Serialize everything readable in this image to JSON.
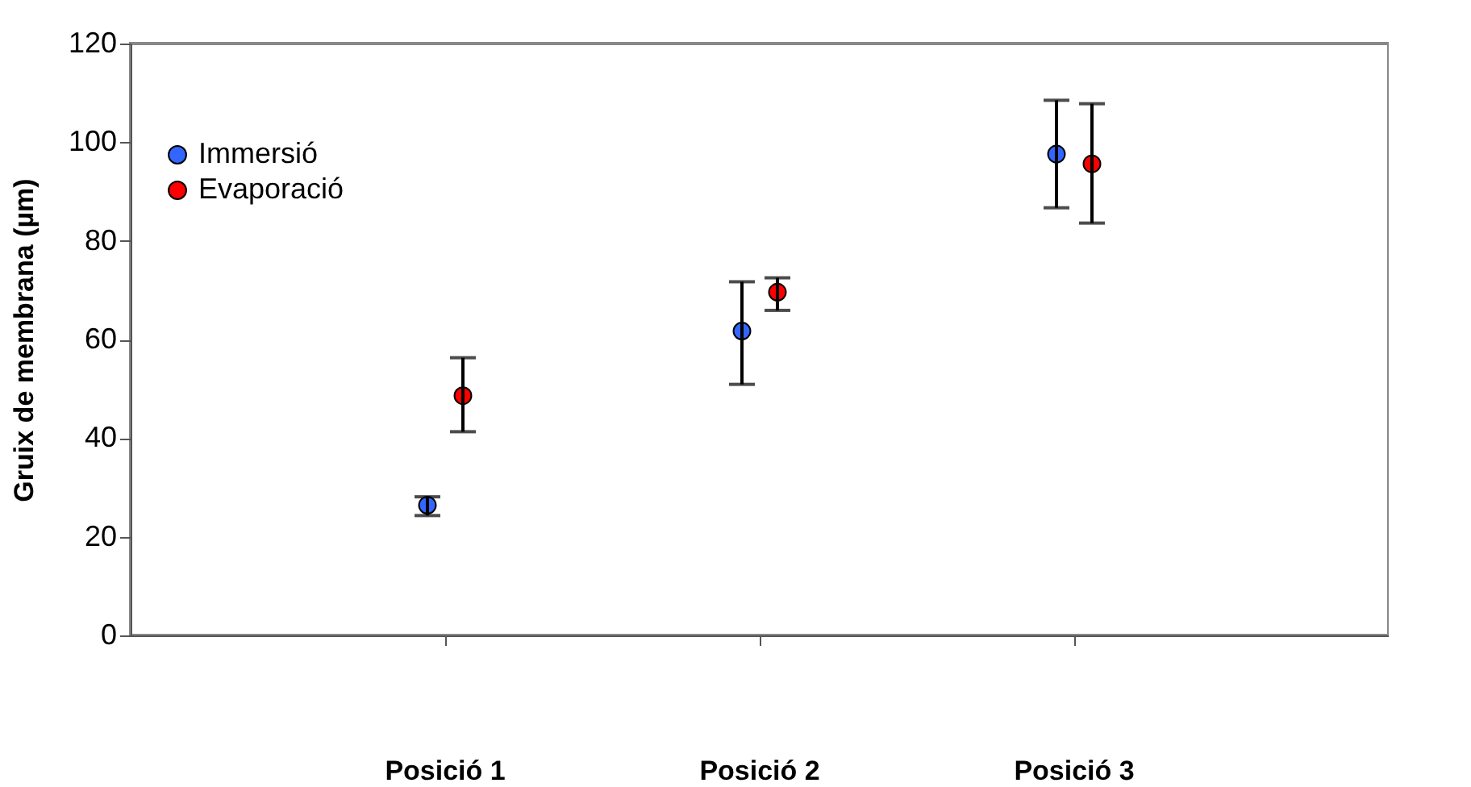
{
  "chart_data": {
    "type": "scatter",
    "ylabel": "Gruix de membrana (µm)",
    "categories": [
      "Posició 1",
      "Posició 2",
      "Posició 3"
    ],
    "series": [
      {
        "name": "Immersió",
        "color": "#3366ff",
        "values": [
          26.4,
          61.7,
          97.6
        ],
        "errors": [
          [
            24.3,
            28.1
          ],
          [
            50.9,
            71.7
          ],
          [
            86.7,
            108.5
          ]
        ]
      },
      {
        "name": "Evaporació",
        "color": "#ff0000",
        "values": [
          48.6,
          69.6,
          95.6
        ],
        "errors": [
          [
            41.3,
            56.3
          ],
          [
            65.9,
            72.5
          ],
          [
            83.6,
            107.8
          ]
        ]
      }
    ],
    "ylim": [
      0,
      120
    ],
    "yticks": [
      0,
      20,
      40,
      60,
      80,
      100,
      120
    ],
    "grid": false,
    "legend": "top left",
    "marker": "circle"
  }
}
